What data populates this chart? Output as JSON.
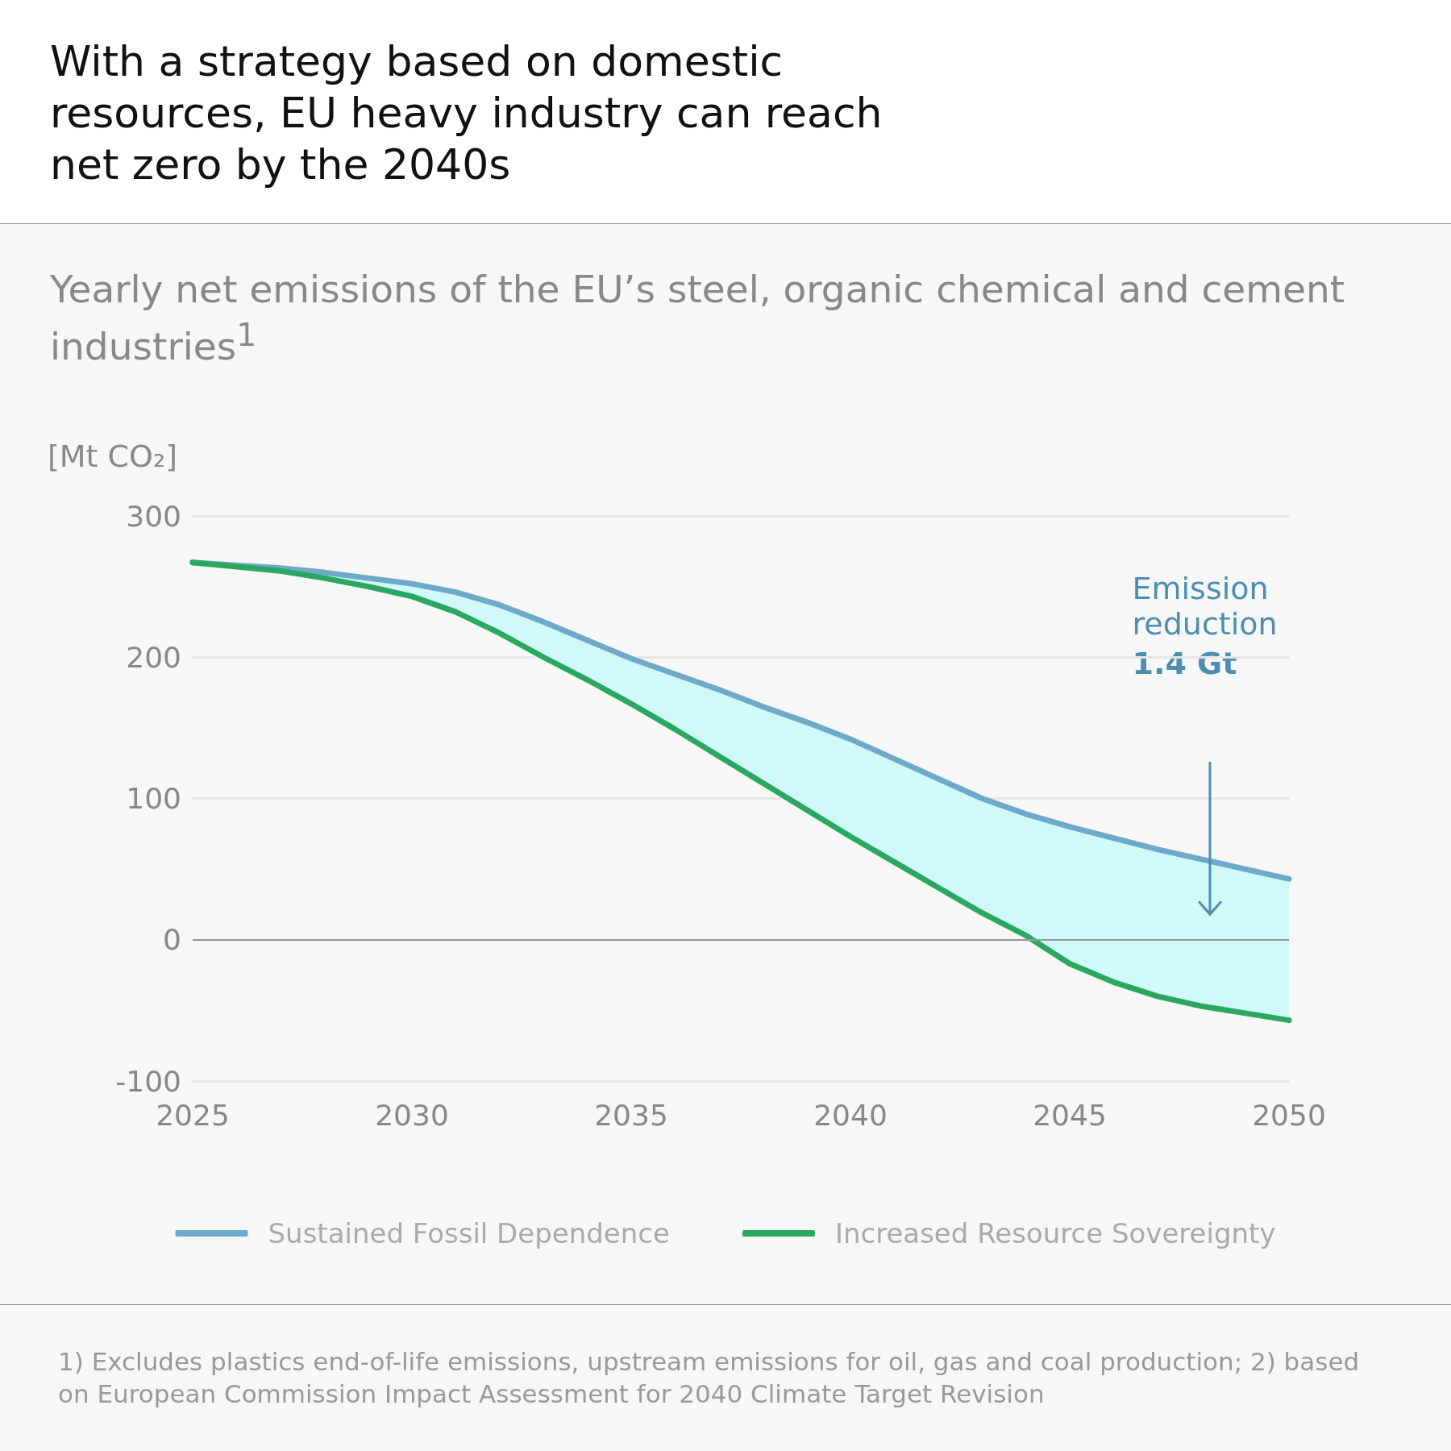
{
  "chart_data": {
    "type": "line",
    "title": "With a strategy based on domestic resources, EU heavy industry can reach net zero by the 2040s",
    "subtitle": "Yearly net emissions of the EU’s steel, organic chemical and cement industries$^{1}$",
    "ylabel": "[Mt CO₂]",
    "x": [
      2025,
      2026,
      2027,
      2028,
      2029,
      2030,
      2031,
      2032,
      2033,
      2034,
      2035,
      2036,
      2037,
      2038,
      2039,
      2040,
      2041,
      2042,
      2043,
      2044,
      2045,
      2046,
      2047,
      2048,
      2049,
      2050
    ],
    "series": [
      {
        "name": "Sustained Fossil Dependence",
        "color": "#6fa9c9",
        "values": [
          267,
          265,
          263,
          260,
          256,
          252,
          246,
          237,
          225,
          212,
          199,
          188,
          177,
          165,
          154,
          142,
          128,
          114,
          100,
          89,
          80,
          72,
          64,
          57,
          50,
          43
        ]
      },
      {
        "name": "Increased Resource Sovereignty",
        "color": "#2aa862",
        "values": [
          267,
          264,
          261,
          256,
          250,
          243,
          232,
          217,
          200,
          184,
          167,
          149,
          130,
          111,
          92,
          73,
          55,
          37,
          19,
          3,
          -17,
          -30,
          -40,
          -47,
          -52,
          -57
        ]
      }
    ],
    "xlim": [
      2025,
      2050
    ],
    "xticks": [
      2025,
      2030,
      2035,
      2040,
      2045,
      2050
    ],
    "ylim": [
      -100,
      300
    ],
    "yticks": [
      -100,
      0,
      100,
      200,
      300
    ],
    "ref_lines": [
      {
        "axis": "y",
        "value": 0,
        "color": "#999999"
      }
    ],
    "annotations": [
      "Emission reduction",
      "1.4 Gt",
      "1) Excludes plastics end-of-life emissions, upstream emissions for oil, gas and coal production; 2) based on European Commission Impact Assessment for 2040 Climate Target Revision"
    ],
    "grid": "y",
    "legend": "bottom",
    "marker": "none",
    "line_style": "solid"
  }
}
